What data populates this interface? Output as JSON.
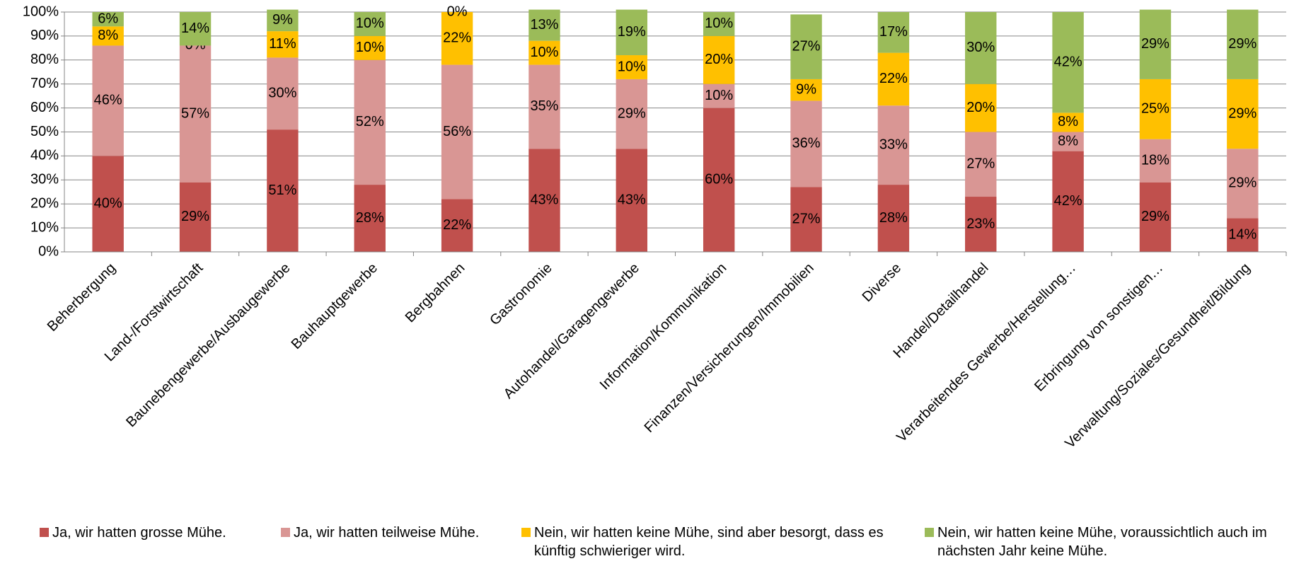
{
  "chart_data": {
    "type": "stacked_bar",
    "categories": [
      "Beherbergung",
      "Land-/Forstwirtschaft",
      "Baunebengewerbe/Ausbaugewerbe",
      "Bauhauptgewerbe",
      "Bergbahnen",
      "Gastronomie",
      "Autohandel/Garagengewerbe",
      "Information/Kommunikation",
      "Finanzen/Versicherungen/Immobilien",
      "Diverse",
      "Handel/Detailhandel",
      "Verarbeitendes Gewerbe/Herstellung…",
      "Erbringung von sonstigen…",
      "Verwaltung/Soziales/Gesundheit/Bildung"
    ],
    "series": [
      {
        "name": "Ja, wir hatten grosse Mühe.",
        "color": "#C0504D",
        "values": [
          40,
          29,
          51,
          28,
          22,
          43,
          43,
          60,
          27,
          28,
          23,
          42,
          29,
          14
        ],
        "value_labels": [
          "40%",
          "29%",
          "51%",
          "28%",
          "22%",
          "43%",
          "43%",
          "60%",
          "27%",
          "28%",
          "23%",
          "42%",
          "29%",
          "14%"
        ]
      },
      {
        "name": "Ja, wir hatten teilweise Mühe.",
        "color": "#D99694",
        "values": [
          46,
          57,
          30,
          52,
          56,
          35,
          29,
          10,
          36,
          33,
          27,
          8,
          18,
          29
        ],
        "value_labels": [
          "46%",
          "57%",
          "30%",
          "52%",
          "56%",
          "35%",
          "29%",
          "10%",
          "36%",
          "33%",
          "27%",
          "8%",
          "18%",
          "29%"
        ]
      },
      {
        "name": "Nein, wir hatten keine Mühe, sind aber besorgt, dass es künftig schwieriger wird.",
        "color": "#FFC000",
        "values": [
          8,
          0,
          11,
          10,
          22,
          10,
          10,
          20,
          9,
          22,
          20,
          8,
          25,
          29
        ],
        "value_labels": [
          "8%",
          "0%",
          "11%",
          "10%",
          "22%",
          "10%",
          "10%",
          "20%",
          "9%",
          "22%",
          "20%",
          "8%",
          "25%",
          "29%"
        ]
      },
      {
        "name": "Nein, wir hatten keine Mühe, voraussichtlich auch im nächsten Jahr keine Mühe.",
        "color": "#9BBB59",
        "values": [
          6,
          14,
          9,
          10,
          0,
          13,
          19,
          10,
          27,
          17,
          30,
          42,
          29,
          29
        ],
        "value_labels": [
          "6%",
          "14%",
          "9%",
          "10%",
          "0%",
          "13%",
          "19%",
          "10%",
          "27%",
          "17%",
          "30%",
          "42%",
          "29%",
          "29%"
        ]
      }
    ],
    "ylim": [
      0,
      100
    ],
    "yticks": [
      {
        "value": 0,
        "label": "0%"
      },
      {
        "value": 10,
        "label": "10%"
      },
      {
        "value": 20,
        "label": "20%"
      },
      {
        "value": 30,
        "label": "30%"
      },
      {
        "value": 40,
        "label": "40%"
      },
      {
        "value": 50,
        "label": "50%"
      },
      {
        "value": 60,
        "label": "60%"
      },
      {
        "value": 70,
        "label": "70%"
      },
      {
        "value": 80,
        "label": "80%"
      },
      {
        "value": 90,
        "label": "90%"
      },
      {
        "value": 100,
        "label": "100%"
      }
    ],
    "grid": true,
    "legend": "bottom"
  }
}
